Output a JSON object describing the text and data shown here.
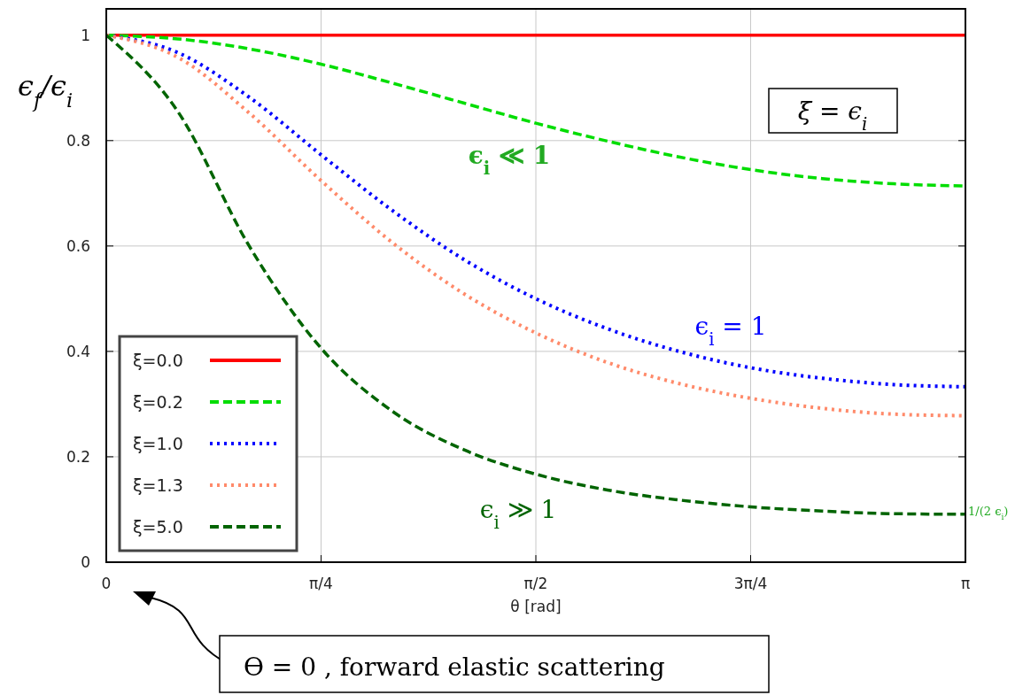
{
  "chart_data": {
    "type": "line",
    "xlabel": "θ [rad]",
    "ylabel": "ϵ$_{f}$/ϵ$_{i}$",
    "x": [
      0,
      0.2618,
      0.5236,
      0.7854,
      1.0472,
      1.309,
      1.5708,
      1.8326,
      2.0944,
      2.3562,
      2.618,
      2.8798,
      3.1416
    ],
    "xlim": [
      0,
      3.1416
    ],
    "ylim": [
      0,
      1.05
    ],
    "xticks": [
      {
        "value": 0,
        "label": "0"
      },
      {
        "value": 0.7854,
        "label": "π/4"
      },
      {
        "value": 1.5708,
        "label": "π/2"
      },
      {
        "value": 2.3562,
        "label": "3π/4"
      },
      {
        "value": 3.1416,
        "label": "π"
      }
    ],
    "yticks": [
      0,
      0.2,
      0.4,
      0.6,
      0.8,
      1
    ],
    "grid": true,
    "legend": "bottom left",
    "marker": "none",
    "series": [
      {
        "name": "ξ=0.0",
        "color": "#ff0000",
        "line_style": "solid",
        "values": [
          1,
          1,
          1,
          1,
          1,
          1,
          1,
          1,
          1,
          1,
          1,
          1,
          1
        ]
      },
      {
        "name": "ξ=0.2",
        "color": "#00dd00",
        "line_style": "dashed",
        "values": [
          1,
          0.993,
          0.974,
          0.945,
          0.909,
          0.871,
          0.833,
          0.799,
          0.769,
          0.745,
          0.728,
          0.718,
          0.714
        ]
      },
      {
        "name": "ξ=1.0",
        "color": "#0000ff",
        "line_style": "dotted",
        "values": [
          1,
          0.967,
          0.882,
          0.773,
          0.667,
          0.574,
          0.5,
          0.443,
          0.4,
          0.369,
          0.349,
          0.337,
          0.333
        ]
      },
      {
        "name": "ξ=1.3",
        "color": "#ff8a6a",
        "line_style": "dotted",
        "values": [
          1,
          0.958,
          0.852,
          0.724,
          0.606,
          0.509,
          0.435,
          0.379,
          0.339,
          0.311,
          0.292,
          0.281,
          0.278
        ]
      },
      {
        "name": "ξ=5.0",
        "color": "#006400",
        "line_style": "dashed",
        "values": [
          1,
          0.855,
          0.599,
          0.406,
          0.286,
          0.213,
          0.167,
          0.137,
          0.118,
          0.105,
          0.097,
          0.092,
          0.091
        ]
      }
    ],
    "annotations": [
      "ξ = ϵ$_{i}$",
      "ϵ$_{i}$ ≪ 1",
      "ϵ$_{i}$ = 1",
      "ϵ$_{i}$ ≫ 1",
      "1/(2 ϵ$_{i}$)",
      "ϴ = 0 , forward elastic scattering"
    ]
  }
}
